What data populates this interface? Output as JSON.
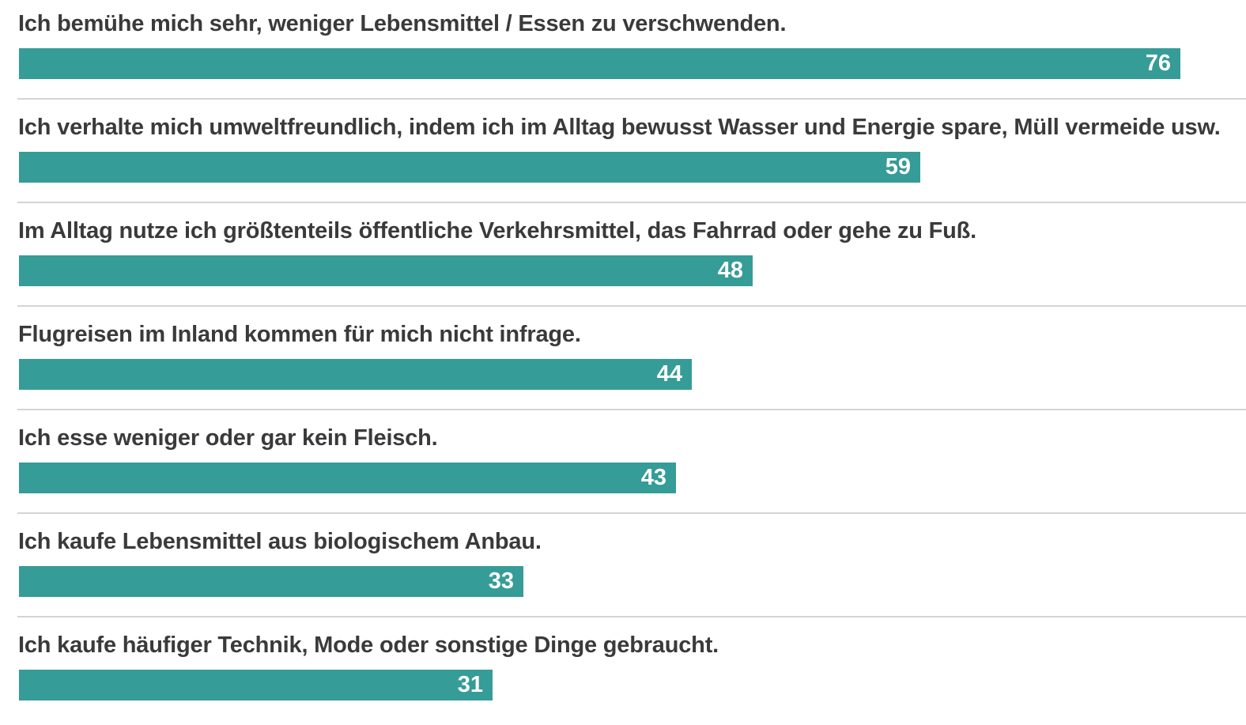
{
  "chart_data": {
    "type": "bar",
    "orientation": "horizontal",
    "title": "",
    "xlabel": "",
    "ylabel": "",
    "xlim": [
      0,
      100
    ],
    "categories": [
      "Ich bemühe mich sehr, weniger Lebensmittel / Essen zu verschwenden.",
      "Ich verhalte mich umweltfreundlich, indem ich im Alltag bewusst Wasser und Energie spare, Müll vermeide usw.",
      "Im Alltag nutze ich größtenteils öffentliche Verkehrsmittel, das Fahrrad oder gehe zu Fuß.",
      "Flugreisen im Inland kommen für mich nicht infrage.",
      "Ich esse weniger oder gar kein Fleisch.",
      "Ich kaufe Lebensmittel aus biologischem Anbau.",
      "Ich kaufe häufiger Technik, Mode oder sonstige Dinge gebraucht."
    ],
    "values": [
      76,
      59,
      48,
      44,
      43,
      33,
      31
    ],
    "bar_color": "#359c97",
    "value_label_color": "#ffffff",
    "label_color": "#3a3a3a",
    "divider_color": "#d4d4d4"
  }
}
